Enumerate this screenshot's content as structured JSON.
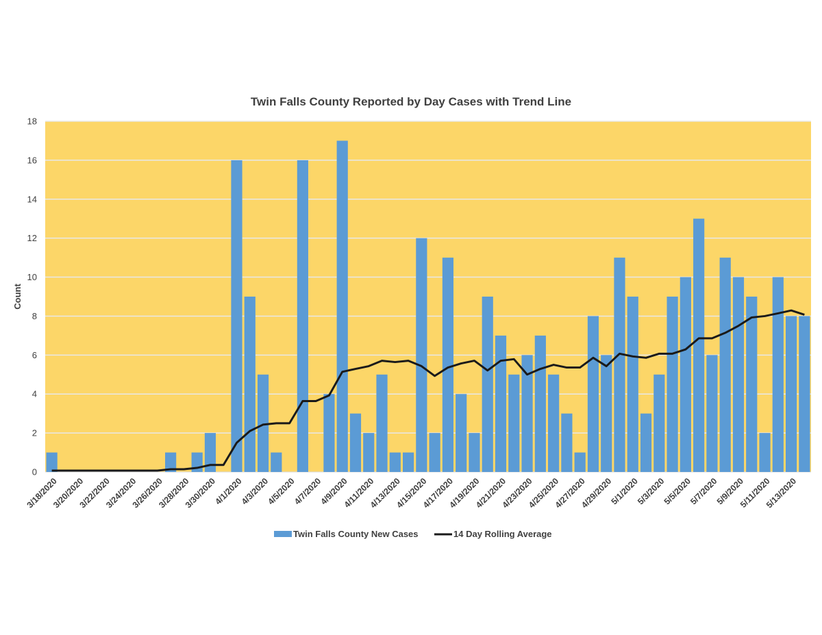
{
  "chart_data": {
    "type": "bar",
    "title": "Twin Falls County Reported by Day Cases with Trend Line",
    "ylabel": "Count",
    "xlabel": "",
    "ylim": [
      0,
      18
    ],
    "yticks": [
      0,
      2,
      4,
      6,
      8,
      10,
      12,
      14,
      16,
      18
    ],
    "grid": true,
    "legend_position": "bottom",
    "colors": {
      "plot_background": "#FCD668",
      "bars": "#5B9BD5",
      "line": "#1A1A1A",
      "gridline": "#E8E8E8"
    },
    "categories": [
      "3/18/2020",
      "3/19/2020",
      "3/20/2020",
      "3/21/2020",
      "3/22/2020",
      "3/23/2020",
      "3/24/2020",
      "3/25/2020",
      "3/26/2020",
      "3/27/2020",
      "3/28/2020",
      "3/29/2020",
      "3/30/2020",
      "3/31/2020",
      "4/1/2020",
      "4/2/2020",
      "4/3/2020",
      "4/4/2020",
      "4/5/2020",
      "4/6/2020",
      "4/7/2020",
      "4/8/2020",
      "4/9/2020",
      "4/10/2020",
      "4/11/2020",
      "4/12/2020",
      "4/13/2020",
      "4/14/2020",
      "4/15/2020",
      "4/16/2020",
      "4/17/2020",
      "4/18/2020",
      "4/19/2020",
      "4/20/2020",
      "4/21/2020",
      "4/22/2020",
      "4/23/2020",
      "4/24/2020",
      "4/25/2020",
      "4/26/2020",
      "4/27/2020",
      "4/28/2020",
      "4/29/2020",
      "4/30/2020",
      "5/1/2020",
      "5/2/2020",
      "5/3/2020",
      "5/4/2020",
      "5/5/2020",
      "5/6/2020",
      "5/7/2020",
      "5/8/2020",
      "5/9/2020",
      "5/10/2020",
      "5/11/2020",
      "5/12/2020",
      "5/13/2020",
      "5/14/2020"
    ],
    "tick_labels": [
      "3/18/2020",
      "3/20/2020",
      "3/22/2020",
      "3/24/2020",
      "3/26/2020",
      "3/28/2020",
      "3/30/2020",
      "4/1/2020",
      "4/3/2020",
      "4/5/2020",
      "4/7/2020",
      "4/9/2020",
      "4/11/2020",
      "4/13/2020",
      "4/15/2020",
      "4/17/2020",
      "4/19/2020",
      "4/21/2020",
      "4/23/2020",
      "4/25/2020",
      "4/27/2020",
      "4/29/2020",
      "5/1/2020",
      "5/3/2020",
      "5/5/2020",
      "5/7/2020",
      "5/9/2020",
      "5/11/2020",
      "5/13/2020"
    ],
    "series": [
      {
        "name": "Twin Falls County New Cases",
        "type": "bar",
        "values": [
          1,
          0,
          0,
          0,
          0,
          0,
          0,
          0,
          0,
          1,
          0,
          1,
          2,
          0,
          16,
          9,
          5,
          1,
          0,
          16,
          0,
          4,
          17,
          3,
          2,
          5,
          1,
          1,
          12,
          2,
          11,
          4,
          2,
          9,
          7,
          5,
          6,
          7,
          5,
          3,
          1,
          8,
          6,
          11,
          9,
          3,
          5,
          9,
          10,
          13,
          6,
          11,
          10,
          9,
          2,
          10,
          8,
          8
        ]
      },
      {
        "name": "14 Day Rolling Average",
        "type": "line",
        "values": [
          0.07,
          0.07,
          0.07,
          0.07,
          0.07,
          0.07,
          0.07,
          0.07,
          0.07,
          0.14,
          0.14,
          0.21,
          0.36,
          0.36,
          1.5,
          2.1,
          2.43,
          2.5,
          2.5,
          3.64,
          3.64,
          3.93,
          5.14,
          5.29,
          5.43,
          5.71,
          5.64,
          5.71,
          5.43,
          4.93,
          5.36,
          5.57,
          5.71,
          5.21,
          5.71,
          5.79,
          5.0,
          5.29,
          5.5,
          5.36,
          5.36,
          5.86,
          5.43,
          6.07,
          5.93,
          5.86,
          6.07,
          6.07,
          6.29,
          6.86,
          6.86,
          7.14,
          7.5,
          7.93,
          8.0,
          8.14,
          8.29,
          8.07
        ]
      }
    ]
  }
}
